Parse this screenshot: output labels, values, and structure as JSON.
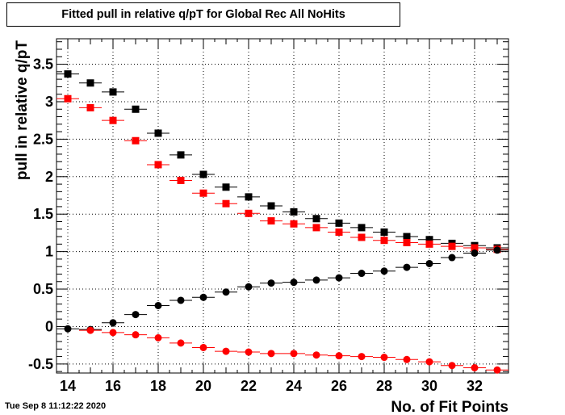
{
  "chart_data": {
    "type": "scatter",
    "title": "Fitted pull in relative q/pT for Global Rec All NoHits",
    "xlabel": "No. of Fit Points",
    "ylabel": "pull in relative q/pT",
    "xlim": [
      13.5,
      33.5
    ],
    "ylim": [
      -0.62,
      3.84
    ],
    "x_ticks": [
      14,
      16,
      18,
      20,
      22,
      24,
      26,
      28,
      30,
      32
    ],
    "y_ticks": [
      -0.5,
      0,
      0.5,
      1,
      1.5,
      2,
      2.5,
      3,
      3.5
    ],
    "grid": true,
    "x": [
      14,
      15,
      16,
      17,
      18,
      19,
      20,
      21,
      22,
      23,
      24,
      25,
      26,
      27,
      28,
      29,
      30,
      31,
      32,
      33
    ],
    "series": [
      {
        "marker": "square",
        "color": "#000000",
        "values": [
          3.37,
          3.25,
          3.13,
          2.9,
          2.58,
          2.29,
          2.03,
          1.86,
          1.73,
          1.61,
          1.53,
          1.44,
          1.38,
          1.32,
          1.26,
          1.2,
          1.16,
          1.11,
          1.08,
          1.05
        ]
      },
      {
        "marker": "square",
        "color": "#ff0000",
        "values": [
          3.04,
          2.92,
          2.75,
          2.48,
          2.16,
          1.95,
          1.78,
          1.64,
          1.51,
          1.41,
          1.37,
          1.32,
          1.26,
          1.19,
          1.15,
          1.12,
          1.1,
          1.07,
          1.05,
          1.03
        ]
      },
      {
        "marker": "circle",
        "color": "#000000",
        "values": [
          -0.03,
          -0.04,
          0.05,
          0.16,
          0.28,
          0.35,
          0.39,
          0.46,
          0.53,
          0.58,
          0.59,
          0.62,
          0.65,
          0.71,
          0.74,
          0.79,
          0.84,
          0.92,
          0.98,
          1.02
        ]
      },
      {
        "marker": "circle",
        "color": "#ff0000",
        "values": [
          null,
          -0.05,
          -0.08,
          -0.11,
          -0.15,
          -0.22,
          -0.28,
          -0.33,
          -0.34,
          -0.36,
          -0.36,
          -0.38,
          -0.39,
          -0.4,
          -0.41,
          -0.44,
          -0.47,
          -0.52,
          -0.55,
          -0.58
        ]
      }
    ]
  },
  "footer": {
    "timestamp": "Tue Sep  8 11:12:22 2020"
  }
}
